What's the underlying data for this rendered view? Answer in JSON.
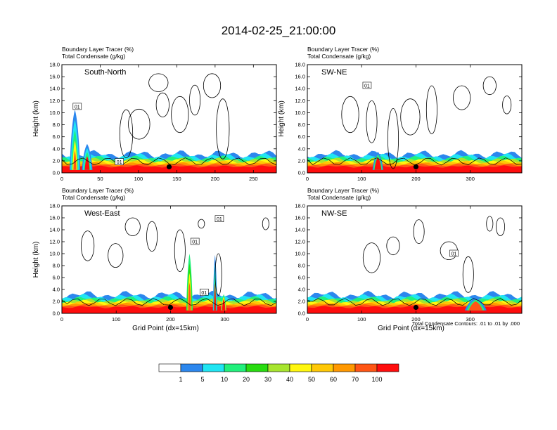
{
  "title": "2014-02-25_21:00:00",
  "colors": [
    "#ffffff",
    "#2c87ee",
    "#20e5f2",
    "#21f07c",
    "#28dc10",
    "#a7e52e",
    "#fff70f",
    "#ffc806",
    "#ff9800",
    "#ff5515",
    "#ff0d0d"
  ],
  "chart_data": [
    {
      "type": "heatmap",
      "panel_name": "South-North",
      "subtitle1": "Boundary Layer Tracer   (%)",
      "subtitle2": "Total Condensate   (g/kg)",
      "xlabel": "",
      "ylabel": "Height (km)",
      "xlim": [
        0,
        280
      ],
      "ylim": [
        0,
        18
      ],
      "xticks": [
        0,
        50,
        100,
        150,
        200,
        250
      ],
      "yticks": [
        "0.0",
        "2.0",
        "4.0",
        "6.0",
        "8.0",
        "10.0",
        "12.0",
        "14.0",
        "16.0",
        "18.0"
      ],
      "marker": {
        "x": 140,
        "y": 1.0
      },
      "contour_labels": [
        {
          "text": "01",
          "x": 20,
          "y": 11
        },
        {
          "text": "01",
          "x": 75,
          "y": 1.8
        }
      ]
    },
    {
      "type": "heatmap",
      "panel_name": "SW-NE",
      "subtitle1": "Boundary Layer Tracer   (%)",
      "subtitle2": "Total Condensate   (g/kg)",
      "xlabel": "",
      "ylabel": "Height (km)",
      "xlim": [
        0,
        395
      ],
      "ylim": [
        0,
        18
      ],
      "xticks": [
        0,
        100,
        200,
        300
      ],
      "yticks": [
        "0.0",
        "2.0",
        "4.0",
        "6.0",
        "8.0",
        "10.0",
        "12.0",
        "14.0",
        "16.0",
        "18.0"
      ],
      "marker": {
        "x": 200,
        "y": 1.0
      },
      "contour_labels": [
        {
          "text": "01",
          "x": 110,
          "y": 14.5
        }
      ]
    },
    {
      "type": "heatmap",
      "panel_name": "West-East",
      "subtitle1": "Boundary Layer Tracer   (%)",
      "subtitle2": "Total Condensate   (g/kg)",
      "xlabel": "Grid Point (dx=15km)",
      "ylabel": "Height (km)",
      "xlim": [
        0,
        395
      ],
      "ylim": [
        0,
        18
      ],
      "xticks": [
        0,
        100,
        200,
        300
      ],
      "yticks": [
        "0.0",
        "2.0",
        "4.0",
        "6.0",
        "8.0",
        "10.0",
        "12.0",
        "14.0",
        "16.0",
        "18.0"
      ],
      "marker": {
        "x": 200,
        "y": 1.0
      },
      "contour_labels": [
        {
          "text": "01",
          "x": 245,
          "y": 12
        },
        {
          "text": "01",
          "x": 290,
          "y": 15.8
        },
        {
          "text": "01",
          "x": 262,
          "y": 3.5
        }
      ]
    },
    {
      "type": "heatmap",
      "panel_name": "NW-SE",
      "subtitle1": "Boundary Layer Tracer   (%)",
      "subtitle2": "Total Condensate   (g/kg)",
      "xlabel": "Grid Point (dx=15km)",
      "ylabel": "",
      "xlim": [
        0,
        395
      ],
      "ylim": [
        0,
        18
      ],
      "xticks": [
        0,
        100,
        200,
        300
      ],
      "yticks": [
        "0.0",
        "2.0",
        "4.0",
        "6.0",
        "8.0",
        "10.0",
        "12.0",
        "14.0",
        "16.0",
        "18.0"
      ],
      "marker": {
        "x": 200,
        "y": 1.0
      },
      "contour_labels": [
        {
          "text": "01",
          "x": 270,
          "y": 10
        }
      ]
    }
  ],
  "contour_note": "Total Condensate Contours: .01 to .01 by .000",
  "colorbar": {
    "labels": [
      "1",
      "5",
      "10",
      "20",
      "30",
      "40",
      "50",
      "60",
      "70",
      "100"
    ]
  }
}
